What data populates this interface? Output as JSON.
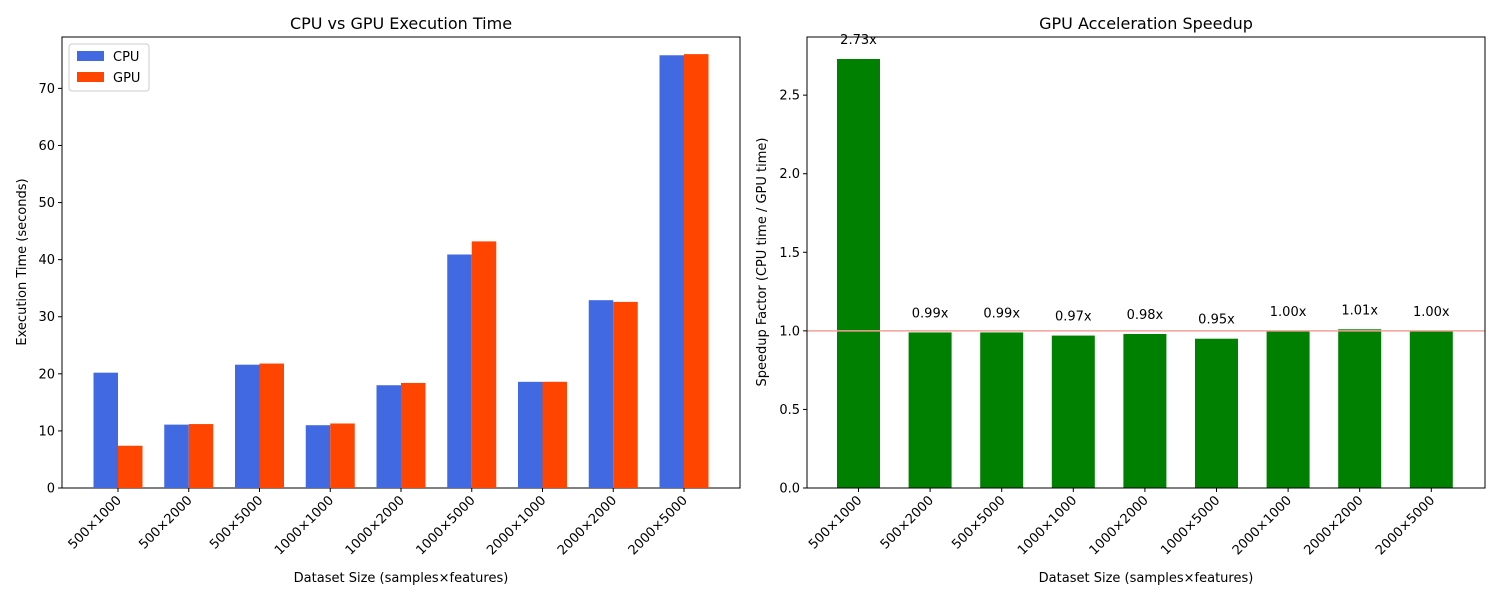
{
  "chart_data": [
    {
      "type": "bar",
      "title": "CPU vs GPU Execution Time",
      "xlabel": "Dataset Size (samples×features)",
      "ylabel": "Execution Time (seconds)",
      "categories": [
        "500×1000",
        "500×2000",
        "500×5000",
        "1000×1000",
        "1000×2000",
        "1000×5000",
        "2000×1000",
        "2000×2000",
        "2000×5000"
      ],
      "series": [
        {
          "name": "CPU",
          "color": "#4169e1",
          "values": [
            20.2,
            11.1,
            21.6,
            11.0,
            18.0,
            40.9,
            18.6,
            32.9,
            75.8
          ]
        },
        {
          "name": "GPU",
          "color": "#ff4500",
          "values": [
            7.4,
            11.2,
            21.8,
            11.3,
            18.4,
            43.2,
            18.6,
            32.6,
            76.0
          ]
        }
      ],
      "ylim": [
        0,
        79
      ],
      "yticks": [
        0,
        10,
        20,
        30,
        40,
        50,
        60,
        70
      ],
      "legend": "top-left",
      "grid": false
    },
    {
      "type": "bar",
      "title": "GPU Acceleration Speedup",
      "xlabel": "Dataset Size (samples×features)",
      "ylabel": "Speedup Factor (CPU time / GPU time)",
      "categories": [
        "500×1000",
        "500×2000",
        "500×5000",
        "1000×1000",
        "1000×2000",
        "1000×5000",
        "2000×1000",
        "2000×2000",
        "2000×5000"
      ],
      "values": [
        2.73,
        0.99,
        0.99,
        0.97,
        0.98,
        0.95,
        1.0,
        1.01,
        1.0
      ],
      "value_labels": [
        "2.73x",
        "0.99x",
        "0.99x",
        "0.97x",
        "0.98x",
        "0.95x",
        "1.00x",
        "1.01x",
        "1.00x"
      ],
      "color": "#008000",
      "reference_line": {
        "y": 1.0,
        "color": "#f4a09a"
      },
      "ylim": [
        0,
        2.87
      ],
      "yticks": [
        "0.0",
        "0.5",
        "1.0",
        "1.5",
        "2.0",
        "2.5"
      ],
      "grid": false
    }
  ]
}
